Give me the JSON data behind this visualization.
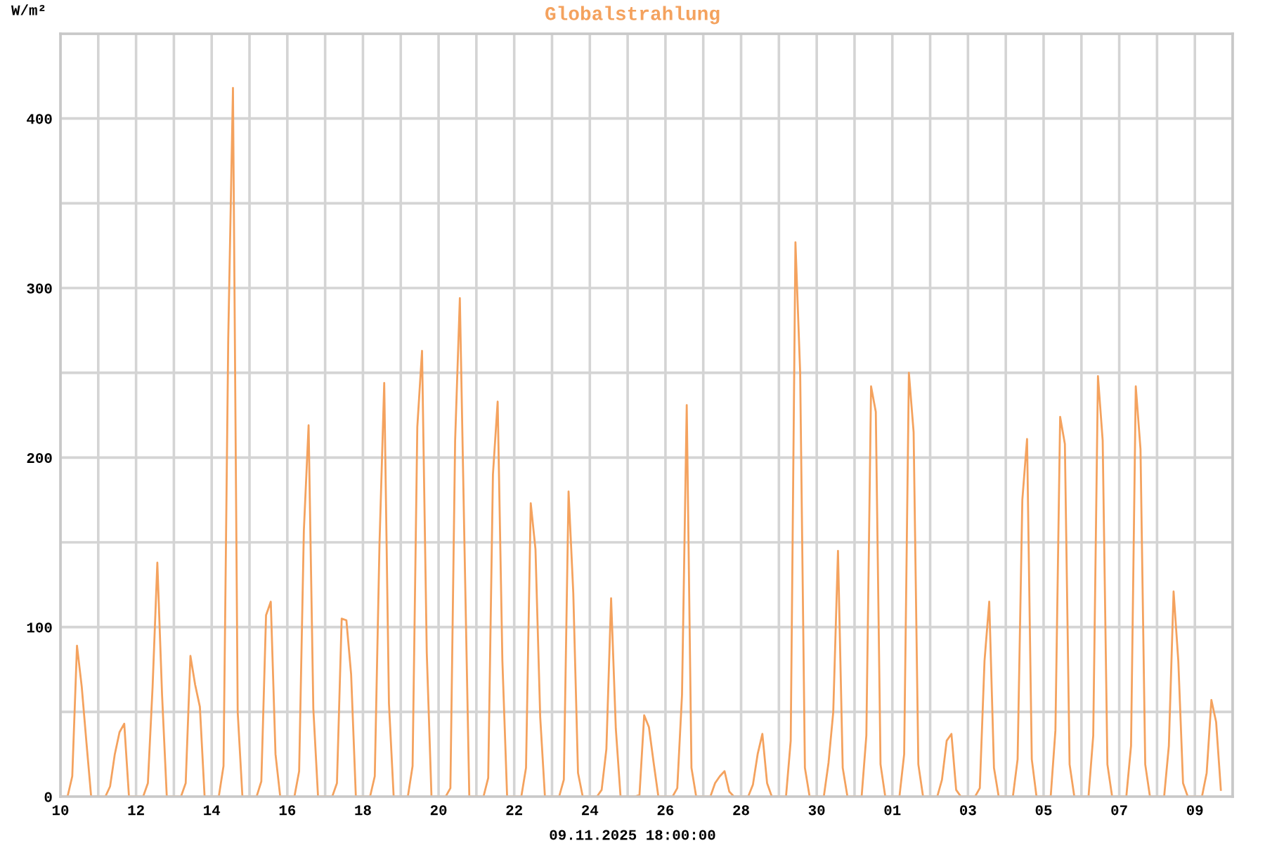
{
  "chart_data": {
    "type": "line",
    "title": "Globalstrahlung",
    "ylabel": "W/m²",
    "xlabel": "09.11.2025 18:00:00",
    "x": [
      "2025-10-10T01:30",
      "2025-10-10T04:30",
      "2025-10-10T07:30",
      "2025-10-10T10:30",
      "2025-10-10T13:30",
      "2025-10-10T16:30",
      "2025-10-10T19:30",
      "2025-10-11T04:30",
      "2025-10-11T07:30",
      "2025-10-11T10:30",
      "2025-10-11T13:30",
      "2025-10-11T16:30",
      "2025-10-11T19:30",
      "2025-10-12T04:30",
      "2025-10-12T07:30",
      "2025-10-12T10:30",
      "2025-10-12T13:30",
      "2025-10-12T16:30",
      "2025-10-12T19:30",
      "2025-10-13T04:30",
      "2025-10-13T07:30",
      "2025-10-13T10:30",
      "2025-10-13T13:30",
      "2025-10-13T16:30",
      "2025-10-13T19:30",
      "2025-10-14T04:30",
      "2025-10-14T07:30",
      "2025-10-14T10:30",
      "2025-10-14T13:30",
      "2025-10-14T16:30",
      "2025-10-14T19:30",
      "2025-10-15T04:30",
      "2025-10-15T07:30",
      "2025-10-15T10:30",
      "2025-10-15T13:30",
      "2025-10-15T16:30",
      "2025-10-15T19:30",
      "2025-10-16T04:30",
      "2025-10-16T07:30",
      "2025-10-16T10:30",
      "2025-10-16T13:30",
      "2025-10-16T16:30",
      "2025-10-16T19:30",
      "2025-10-17T04:30",
      "2025-10-17T07:30",
      "2025-10-17T10:30",
      "2025-10-17T13:30",
      "2025-10-17T16:30",
      "2025-10-17T19:30",
      "2025-10-18T04:30",
      "2025-10-18T07:30",
      "2025-10-18T10:30",
      "2025-10-18T13:30",
      "2025-10-18T16:30",
      "2025-10-18T19:30",
      "2025-10-19T04:30",
      "2025-10-19T07:30",
      "2025-10-19T10:30",
      "2025-10-19T13:30",
      "2025-10-19T16:30",
      "2025-10-19T19:30",
      "2025-10-20T04:30",
      "2025-10-20T07:30",
      "2025-10-20T10:30",
      "2025-10-20T13:30",
      "2025-10-20T16:30",
      "2025-10-20T19:30",
      "2025-10-21T04:30",
      "2025-10-21T07:30",
      "2025-10-21T10:30",
      "2025-10-21T13:30",
      "2025-10-21T16:30",
      "2025-10-21T19:30",
      "2025-10-22T04:30",
      "2025-10-22T07:30",
      "2025-10-22T10:30",
      "2025-10-22T13:30",
      "2025-10-22T16:30",
      "2025-10-22T19:30",
      "2025-10-23T04:30",
      "2025-10-23T07:30",
      "2025-10-23T10:30",
      "2025-10-23T13:30",
      "2025-10-23T16:30",
      "2025-10-23T19:30",
      "2025-10-24T04:30",
      "2025-10-24T07:30",
      "2025-10-24T10:30",
      "2025-10-24T13:30",
      "2025-10-24T16:30",
      "2025-10-24T19:30",
      "2025-10-25T04:30",
      "2025-10-25T07:30",
      "2025-10-25T10:30",
      "2025-10-25T13:30",
      "2025-10-25T16:30",
      "2025-10-25T19:30",
      "2025-10-26T04:30",
      "2025-10-26T07:30",
      "2025-10-26T10:30",
      "2025-10-26T13:30",
      "2025-10-26T16:30",
      "2025-10-26T19:30",
      "2025-10-27T04:30",
      "2025-10-27T07:30",
      "2025-10-27T10:30",
      "2025-10-27T13:30",
      "2025-10-27T16:30",
      "2025-10-27T19:30",
      "2025-10-28T04:30",
      "2025-10-28T07:30",
      "2025-10-28T10:30",
      "2025-10-28T13:30",
      "2025-10-28T16:30",
      "2025-10-28T19:30",
      "2025-10-29T04:30",
      "2025-10-29T07:30",
      "2025-10-29T10:30",
      "2025-10-29T13:30",
      "2025-10-29T16:30",
      "2025-10-29T19:30",
      "2025-10-30T04:30",
      "2025-10-30T07:30",
      "2025-10-30T10:30",
      "2025-10-30T13:30",
      "2025-10-30T16:30",
      "2025-10-30T19:30",
      "2025-10-31T04:30",
      "2025-10-31T07:30",
      "2025-10-31T10:30",
      "2025-10-31T13:30",
      "2025-10-31T16:30",
      "2025-10-31T19:30",
      "2025-11-01T04:30",
      "2025-11-01T07:30",
      "2025-11-01T10:30",
      "2025-11-01T13:30",
      "2025-11-01T16:30",
      "2025-11-01T19:30",
      "2025-11-02T04:30",
      "2025-11-02T07:30",
      "2025-11-02T10:30",
      "2025-11-02T13:30",
      "2025-11-02T16:30",
      "2025-11-02T19:30",
      "2025-11-03T04:30",
      "2025-11-03T07:30",
      "2025-11-03T10:30",
      "2025-11-03T13:30",
      "2025-11-03T16:30",
      "2025-11-03T19:30",
      "2025-11-04T04:30",
      "2025-11-04T07:30",
      "2025-11-04T10:30",
      "2025-11-04T13:30",
      "2025-11-04T16:30",
      "2025-11-04T19:30",
      "2025-11-05T04:30",
      "2025-11-05T07:30",
      "2025-11-05T10:30",
      "2025-11-05T13:30",
      "2025-11-05T16:30",
      "2025-11-05T19:30",
      "2025-11-06T04:30",
      "2025-11-06T07:30",
      "2025-11-06T10:30",
      "2025-11-06T13:30",
      "2025-11-06T16:30",
      "2025-11-06T19:30",
      "2025-11-07T04:30",
      "2025-11-07T07:30",
      "2025-11-07T10:30",
      "2025-11-07T13:30",
      "2025-11-07T16:30",
      "2025-11-07T19:30",
      "2025-11-08T04:30",
      "2025-11-08T07:30",
      "2025-11-08T10:30",
      "2025-11-08T13:30",
      "2025-11-08T16:30",
      "2025-11-08T19:30",
      "2025-11-09T04:30",
      "2025-11-09T07:30",
      "2025-11-09T10:30",
      "2025-11-09T13:30",
      "2025-11-09T16:30"
    ],
    "series": [
      {
        "color": "#f4a25e",
        "values": [
          0,
          0,
          12,
          89,
          65,
          32,
          0,
          0,
          6,
          25,
          38,
          43,
          0,
          0,
          8,
          65,
          138,
          60,
          0,
          0,
          8,
          83,
          66,
          53,
          0,
          0,
          18,
          270,
          418,
          50,
          0,
          0,
          9,
          107,
          115,
          25,
          0,
          0,
          15,
          157,
          219,
          52,
          0,
          0,
          8,
          105,
          104,
          72,
          0,
          0,
          12,
          149,
          244,
          55,
          0,
          0,
          18,
          218,
          263,
          85,
          0,
          0,
          5,
          210,
          294,
          145,
          0,
          0,
          11,
          190,
          233,
          80,
          0,
          0,
          17,
          173,
          146,
          47,
          0,
          0,
          10,
          180,
          120,
          14,
          0,
          0,
          4,
          28,
          117,
          40,
          0,
          0,
          1,
          48,
          41,
          20,
          0,
          0,
          5,
          60,
          231,
          17,
          0,
          0,
          8,
          12,
          15,
          3,
          0,
          0,
          7,
          25,
          37,
          8,
          0,
          0,
          33,
          327,
          250,
          17,
          0,
          0,
          20,
          50,
          145,
          17,
          0,
          0,
          36,
          242,
          227,
          19,
          0,
          0,
          25,
          250,
          215,
          19,
          0,
          0,
          10,
          33,
          37,
          4,
          0,
          0,
          5,
          80,
          115,
          17,
          0,
          0,
          22,
          175,
          211,
          22,
          0,
          0,
          39,
          224,
          208,
          19,
          0,
          0,
          36,
          248,
          210,
          19,
          0,
          0,
          30,
          242,
          205,
          19,
          0,
          0,
          30,
          121,
          80,
          8,
          0,
          0,
          14,
          57,
          44,
          4
        ]
      }
    ],
    "xlim": [
      "2025-10-10T00:00",
      "2025-11-10T00:00"
    ],
    "xticks": [
      {
        "value": "2025-10-10",
        "label": "10"
      },
      {
        "value": "2025-10-11",
        "label": null
      },
      {
        "value": "2025-10-12",
        "label": "12"
      },
      {
        "value": "2025-10-13",
        "label": null
      },
      {
        "value": "2025-10-14",
        "label": "14"
      },
      {
        "value": "2025-10-15",
        "label": null
      },
      {
        "value": "2025-10-16",
        "label": "16"
      },
      {
        "value": "2025-10-17",
        "label": null
      },
      {
        "value": "2025-10-18",
        "label": "18"
      },
      {
        "value": "2025-10-19",
        "label": null
      },
      {
        "value": "2025-10-20",
        "label": "20"
      },
      {
        "value": "2025-10-21",
        "label": null
      },
      {
        "value": "2025-10-22",
        "label": "22"
      },
      {
        "value": "2025-10-23",
        "label": null
      },
      {
        "value": "2025-10-24",
        "label": "24"
      },
      {
        "value": "2025-10-25",
        "label": null
      },
      {
        "value": "2025-10-26",
        "label": "26"
      },
      {
        "value": "2025-10-27",
        "label": null
      },
      {
        "value": "2025-10-28",
        "label": "28"
      },
      {
        "value": "2025-10-29",
        "label": null
      },
      {
        "value": "2025-10-30",
        "label": "30"
      },
      {
        "value": "2025-10-31",
        "label": null
      },
      {
        "value": "2025-11-01",
        "label": "01"
      },
      {
        "value": "2025-11-02",
        "label": null
      },
      {
        "value": "2025-11-03",
        "label": "03"
      },
      {
        "value": "2025-11-04",
        "label": null
      },
      {
        "value": "2025-11-05",
        "label": "05"
      },
      {
        "value": "2025-11-06",
        "label": null
      },
      {
        "value": "2025-11-07",
        "label": "07"
      },
      {
        "value": "2025-11-08",
        "label": null
      },
      {
        "value": "2025-11-09",
        "label": "09"
      },
      {
        "value": "2025-11-10",
        "label": null
      }
    ],
    "ylim": [
      0,
      450
    ],
    "yticks": [
      0,
      {
        "value": 50,
        "label": null
      },
      100,
      {
        "value": 150,
        "label": null
      },
      200,
      {
        "value": 250,
        "label": null
      },
      300,
      {
        "value": 350,
        "label": null
      },
      400,
      {
        "value": 450,
        "label": null
      }
    ],
    "grid": true
  }
}
